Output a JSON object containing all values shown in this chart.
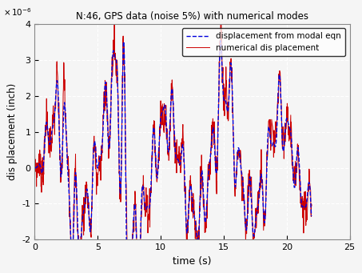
{
  "title": "N:46, GPS data (noise 5%) with numerical modes",
  "xlabel": "time (s)",
  "ylabel": "displacement (inch)",
  "ylim": [
    -2e-06,
    4e-06
  ],
  "xlim": [
    0,
    25
  ],
  "yticks": [
    -2e-06,
    -1e-06,
    0,
    1e-06,
    2e-06,
    3e-06,
    4e-06
  ],
  "xticks": [
    0,
    5,
    10,
    15,
    20,
    25
  ],
  "legend_labels": [
    "displacement from modal eqn",
    "numerical dis placement"
  ],
  "modal_color": "#0000DD",
  "numerical_color": "#CC0000",
  "background_color": "#f5f5f5",
  "figsize": [
    4.53,
    3.41
  ],
  "dpi": 100
}
